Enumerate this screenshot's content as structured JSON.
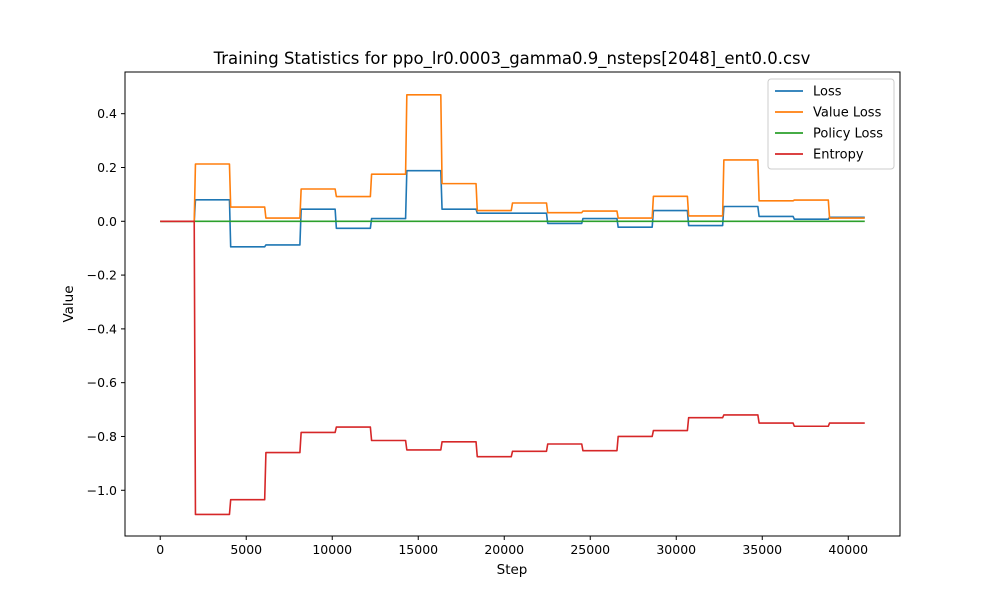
{
  "chart_data": {
    "type": "line",
    "title": "Training Statistics for ppo_lr0.0003_gamma0.9_nsteps[2048]_ent0.0.csv",
    "xlabel": "Step",
    "ylabel": "Value",
    "xlim": [
      -2048,
      43008
    ],
    "ylim": [
      -1.17,
      0.555
    ],
    "xticks": [
      0,
      5000,
      10000,
      15000,
      20000,
      25000,
      30000,
      35000,
      40000
    ],
    "xtick_labels": [
      "0",
      "5000",
      "10000",
      "15000",
      "20000",
      "25000",
      "30000",
      "35000",
      "40000"
    ],
    "yticks": [
      -1.0,
      -0.8,
      -0.6,
      -0.4,
      -0.2,
      0.0,
      0.2,
      0.4
    ],
    "ytick_labels": [
      "−1.0",
      "−0.8",
      "−0.6",
      "−0.4",
      "−0.2",
      "0.0",
      "0.2",
      "0.4"
    ],
    "grid": false,
    "legend_position": "top-right",
    "line_style": "steps-with-ramps",
    "x": [
      0,
      2048,
      4096,
      6144,
      8192,
      10240,
      12288,
      14336,
      16384,
      18432,
      20480,
      22528,
      24576,
      26624,
      28672,
      30720,
      32768,
      34816,
      36864,
      38912,
      40960
    ],
    "series": [
      {
        "name": "Loss",
        "color": "#1f77b4",
        "values": [
          0.0,
          0.08,
          -0.095,
          -0.088,
          0.045,
          -0.026,
          0.01,
          0.188,
          0.045,
          0.03,
          0.03,
          -0.008,
          0.01,
          -0.022,
          0.04,
          -0.016,
          0.055,
          0.018,
          0.008,
          0.015,
          0.015
        ]
      },
      {
        "name": "Value Loss",
        "color": "#ff7f0e",
        "values": [
          0.0,
          0.213,
          0.053,
          0.012,
          0.12,
          0.092,
          0.175,
          0.47,
          0.14,
          0.04,
          0.068,
          0.032,
          0.038,
          0.012,
          0.093,
          0.02,
          0.228,
          0.076,
          0.079,
          0.012,
          0.012
        ]
      },
      {
        "name": "Policy Loss",
        "color": "#2ca02c",
        "values": [
          0.0,
          0.0,
          0.0,
          0.0,
          0.0,
          0.0,
          0.0,
          0.0,
          0.0,
          0.0,
          0.0,
          0.0,
          0.0,
          0.0,
          0.0,
          0.0,
          0.0,
          0.0,
          0.0,
          0.0,
          0.0
        ]
      },
      {
        "name": "Entropy",
        "color": "#d62728",
        "values": [
          0.0,
          -1.09,
          -1.035,
          -0.86,
          -0.785,
          -0.765,
          -0.815,
          -0.85,
          -0.82,
          -0.875,
          -0.855,
          -0.828,
          -0.853,
          -0.8,
          -0.778,
          -0.73,
          -0.72,
          -0.75,
          -0.762,
          -0.75,
          -0.75
        ]
      }
    ]
  }
}
